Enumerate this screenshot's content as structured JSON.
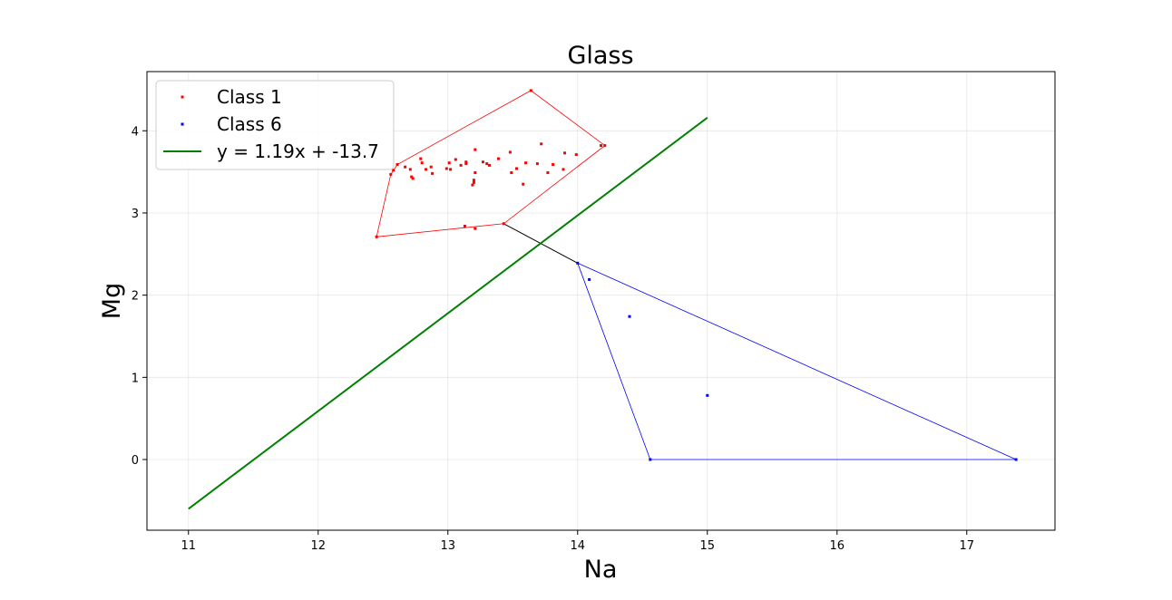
{
  "chart_data": {
    "type": "scatter",
    "title": "Glass",
    "xlabel": "Na",
    "ylabel": "Mg",
    "xlim": [
      10.68,
      17.68
    ],
    "ylim": [
      -0.86,
      4.72
    ],
    "xticks": [
      11,
      12,
      13,
      14,
      15,
      16,
      17
    ],
    "yticks": [
      0,
      1,
      2,
      3,
      4
    ],
    "grid": true,
    "legend_position": "top-left",
    "series": [
      {
        "name": "Class 1",
        "kind": "points",
        "color": "#ff0000",
        "x": [
          13.64,
          12.45,
          13.43,
          14.21,
          12.58,
          12.56,
          12.61,
          12.67,
          12.71,
          12.73,
          12.72,
          12.8,
          12.79,
          12.83,
          12.87,
          12.88,
          12.99,
          13.01,
          13.02,
          13.06,
          13.1,
          13.13,
          13.14,
          13.14,
          13.19,
          13.2,
          13.2,
          13.21,
          13.21,
          13.21,
          13.27,
          13.3,
          13.32,
          13.39,
          13.48,
          13.49,
          13.53,
          13.58,
          13.6,
          13.69,
          13.72,
          13.77,
          13.81,
          13.89,
          13.9,
          13.99,
          14.18
        ],
        "y": [
          4.49,
          2.71,
          2.87,
          3.82,
          3.52,
          3.47,
          3.59,
          3.56,
          3.53,
          3.42,
          3.44,
          3.61,
          3.66,
          3.53,
          3.56,
          3.48,
          3.54,
          3.61,
          3.53,
          3.65,
          3.58,
          2.84,
          3.62,
          3.6,
          3.34,
          3.37,
          3.4,
          3.77,
          3.49,
          2.81,
          3.62,
          3.6,
          3.58,
          3.66,
          3.74,
          3.49,
          3.54,
          3.35,
          3.61,
          3.6,
          3.84,
          3.49,
          3.59,
          3.53,
          3.73,
          3.71,
          3.82
        ]
      },
      {
        "name": "Class 6",
        "kind": "points",
        "color": "#0000ff",
        "x": [
          14.0,
          14.09,
          14.4,
          15.0,
          14.56,
          17.38
        ],
        "y": [
          2.39,
          2.19,
          1.74,
          0.78,
          0.0,
          0.0
        ]
      },
      {
        "name": "y = 1.19x + -13.7",
        "kind": "line",
        "color": "#008000",
        "x": [
          11,
          15
        ],
        "y": [
          -0.6,
          4.16
        ]
      }
    ],
    "hulls": [
      {
        "color": "#ff0000",
        "x": [
          12.45,
          13.43,
          14.21,
          13.64,
          12.61,
          12.56,
          12.45
        ],
        "y": [
          2.71,
          2.87,
          3.82,
          4.49,
          3.59,
          3.47,
          2.71
        ]
      },
      {
        "color": "#0000ff",
        "x": [
          14.0,
          14.56,
          17.38,
          14.0
        ],
        "y": [
          2.39,
          0.0,
          0.0,
          2.39
        ]
      }
    ],
    "connector": {
      "color": "#000000",
      "x": [
        13.43,
        14.0
      ],
      "y": [
        2.87,
        2.39
      ]
    }
  }
}
